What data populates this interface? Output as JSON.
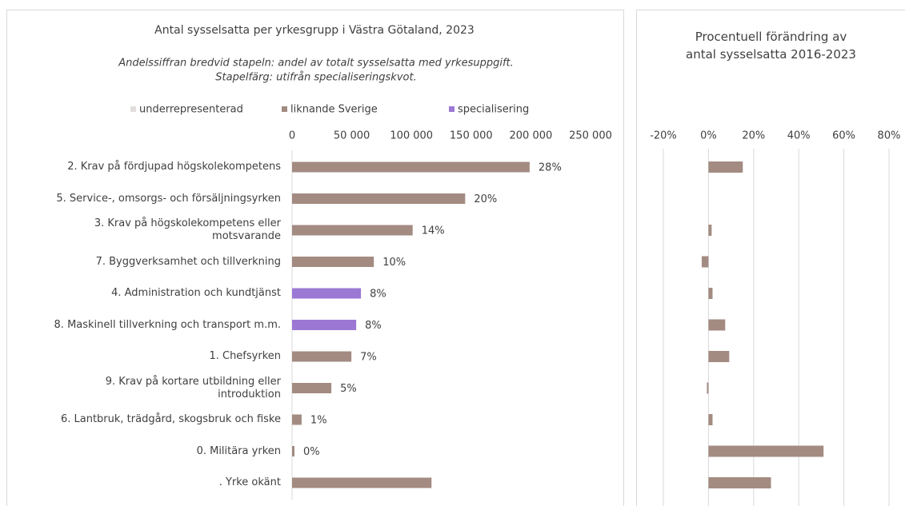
{
  "chart_data": [
    {
      "type": "bar",
      "orientation": "horizontal",
      "title": "Antal sysselsatta per yrkesgrupp i Västra Götaland, 2023",
      "subtitle": [
        "Andelssiffran bredvid stapeln: andel av totalt sysselsatta med yrkesuppgift.",
        "Stapelfärg: utifrån specialiseringskvot."
      ],
      "categories": [
        "2. Krav på fördjupad högskolekompetens",
        "5. Service-, omsorgs- och försäljningsyrken",
        "3. Krav på högskolekompetens eller\nmotsvarande",
        "7. Byggverksamhet och tillverkning",
        "4. Administration och kundtjänst",
        "8. Maskinell tillverkning och transport m.m.",
        "1. Chefsyrken",
        "9. Krav på kortare utbildning eller\nintroduktion",
        "6. Lantbruk, trädgård, skogsbruk och fiske",
        "0. Militära yrken",
        ". Yrke okänt"
      ],
      "series": [
        {
          "name": "underrepresenterad",
          "color": "#e2dede",
          "values": [
            null,
            null,
            null,
            null,
            null,
            null,
            null,
            null,
            null,
            null,
            null
          ]
        },
        {
          "name": "liknande Sverige",
          "color": "#a38b82",
          "values": [
            199000,
            145000,
            101000,
            68500,
            null,
            null,
            49700,
            32900,
            8000,
            2000,
            116800
          ]
        },
        {
          "name": "specialisering",
          "color": "#9b78d4",
          "values": [
            null,
            null,
            null,
            null,
            57700,
            53700,
            null,
            null,
            null,
            null,
            null
          ]
        }
      ],
      "value_labels": [
        "28%",
        "20%",
        "14%",
        "10%",
        "8%",
        "8%",
        "7%",
        "5%",
        "1%",
        "0%",
        null
      ],
      "xlim": [
        0,
        250000
      ],
      "xticks": [
        0,
        {
          "value": 50000,
          "label": "50 000"
        },
        {
          "value": 100000,
          "label": "100 000"
        },
        {
          "value": 150000,
          "label": "150 000"
        },
        {
          "value": 200000,
          "label": "200 000"
        },
        {
          "value": 250000,
          "label": "250 000"
        }
      ],
      "legend": "top"
    },
    {
      "type": "bar",
      "orientation": "horizontal",
      "title": "Procentuell förändring av\nantal sysselsatta 2016-2023",
      "color": "#a38b82",
      "values": [
        15.2,
        null,
        1.4,
        -3,
        1.8,
        7.4,
        9.2,
        -0.7,
        1.8,
        51,
        27.7
      ],
      "xlim": [
        -20,
        80
      ],
      "xticks": [
        {
          "value": -20,
          "label": "-20%"
        },
        {
          "value": 0,
          "label": "0%"
        },
        {
          "value": 20,
          "label": "20%"
        },
        {
          "value": 40,
          "label": "40%"
        },
        {
          "value": 60,
          "label": "60%"
        },
        {
          "value": 80,
          "label": "80%"
        }
      ],
      "grid": true
    }
  ]
}
